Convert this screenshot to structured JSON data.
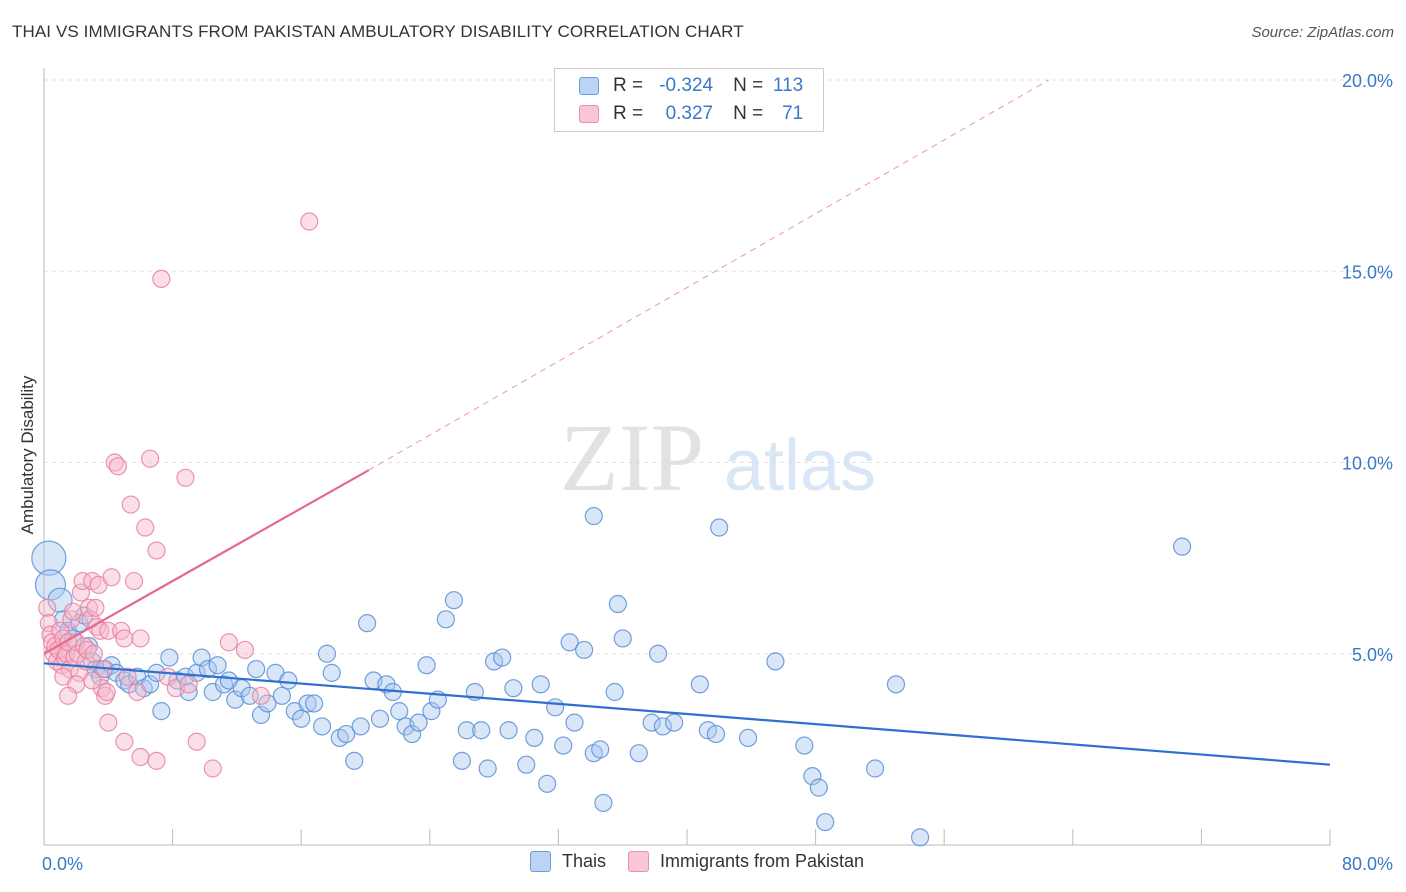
{
  "header": {
    "title": "THAI VS IMMIGRANTS FROM PAKISTAN AMBULATORY DISABILITY CORRELATION CHART",
    "source": "Source: ZipAtlas.com"
  },
  "watermark": {
    "zip": "ZIP",
    "atlas": "atlas"
  },
  "legend_top": {
    "r_label": "R =",
    "n_label": "N =",
    "rows": [
      {
        "r": "-0.324",
        "n": "113"
      },
      {
        "r": "0.327",
        "n": "71"
      }
    ]
  },
  "colors": {
    "thais_fill": "#a8c8f0",
    "thais_stroke": "#5b8fd6",
    "thais_line": "#2f6fcf",
    "pak_fill": "#f7b8cb",
    "pak_stroke": "#e8829f",
    "pak_line": "#e46a90",
    "tick_label": "#3a78c8",
    "grid": "#e2e2e2"
  },
  "chart_data": {
    "type": "scatter",
    "title": "THAI VS IMMIGRANTS FROM PAKISTAN AMBULATORY DISABILITY CORRELATION CHART",
    "xlabel": "",
    "ylabel": "Ambulatory Disability",
    "xlim": [
      0,
      80
    ],
    "ylim": [
      0,
      20
    ],
    "x_tick_labels": [
      "0.0%",
      "80.0%"
    ],
    "y_ticks": [
      5,
      10,
      15,
      20
    ],
    "y_tick_labels": [
      "5.0%",
      "10.0%",
      "15.0%",
      "20.0%"
    ],
    "grid": true,
    "legend": "bottom-center",
    "series": [
      {
        "name": "Thais",
        "r": -0.324,
        "n": 113,
        "trend": {
          "x0": 0,
          "y0": 4.75,
          "x1": 80,
          "y1": 2.1
        },
        "points": [
          [
            0.3,
            7.5
          ],
          [
            0.4,
            6.8
          ],
          [
            1,
            6.4
          ],
          [
            1.2,
            5.9
          ],
          [
            1.5,
            5.6
          ],
          [
            1.8,
            5.4
          ],
          [
            2.2,
            5.8
          ],
          [
            2.5,
            6.0
          ],
          [
            2.8,
            5.2
          ],
          [
            3,
            4.8
          ],
          [
            3.2,
            4.6
          ],
          [
            3.5,
            4.4
          ],
          [
            3.8,
            4.6
          ],
          [
            4.2,
            4.7
          ],
          [
            4.5,
            4.5
          ],
          [
            5,
            4.3
          ],
          [
            5.3,
            4.2
          ],
          [
            5.8,
            4.4
          ],
          [
            6.2,
            4.1
          ],
          [
            6.6,
            4.2
          ],
          [
            7,
            4.5
          ],
          [
            7.3,
            3.5
          ],
          [
            7.8,
            4.9
          ],
          [
            8.3,
            4.3
          ],
          [
            8.8,
            4.4
          ],
          [
            9,
            4.0
          ],
          [
            9.5,
            4.5
          ],
          [
            9.8,
            4.9
          ],
          [
            10.2,
            4.6
          ],
          [
            10.5,
            4.0
          ],
          [
            10.8,
            4.7
          ],
          [
            11.2,
            4.2
          ],
          [
            11.5,
            4.3
          ],
          [
            11.9,
            3.8
          ],
          [
            12.3,
            4.1
          ],
          [
            12.8,
            3.9
          ],
          [
            13.2,
            4.6
          ],
          [
            13.5,
            3.4
          ],
          [
            13.9,
            3.7
          ],
          [
            14.4,
            4.5
          ],
          [
            14.8,
            3.9
          ],
          [
            15.2,
            4.3
          ],
          [
            15.6,
            3.5
          ],
          [
            16,
            3.3
          ],
          [
            16.4,
            3.7
          ],
          [
            16.8,
            3.7
          ],
          [
            17.3,
            3.1
          ],
          [
            17.6,
            5.0
          ],
          [
            17.9,
            4.5
          ],
          [
            18.4,
            2.8
          ],
          [
            18.8,
            2.9
          ],
          [
            19.3,
            2.2
          ],
          [
            19.7,
            3.1
          ],
          [
            20.1,
            5.8
          ],
          [
            20.5,
            4.3
          ],
          [
            20.9,
            3.3
          ],
          [
            21.3,
            4.2
          ],
          [
            21.7,
            4.0
          ],
          [
            22.1,
            3.5
          ],
          [
            22.5,
            3.1
          ],
          [
            22.9,
            2.9
          ],
          [
            23.3,
            3.2
          ],
          [
            23.8,
            4.7
          ],
          [
            24.1,
            3.5
          ],
          [
            24.5,
            3.8
          ],
          [
            25,
            5.9
          ],
          [
            25.5,
            6.4
          ],
          [
            26,
            2.2
          ],
          [
            26.3,
            3.0
          ],
          [
            26.8,
            4.0
          ],
          [
            27.2,
            3.0
          ],
          [
            27.6,
            2.0
          ],
          [
            28,
            4.8
          ],
          [
            28.5,
            4.9
          ],
          [
            28.9,
            3.0
          ],
          [
            29.2,
            4.1
          ],
          [
            30,
            2.1
          ],
          [
            30.5,
            2.8
          ],
          [
            30.9,
            4.2
          ],
          [
            31.3,
            1.6
          ],
          [
            31.8,
            3.6
          ],
          [
            32.3,
            2.6
          ],
          [
            32.7,
            5.3
          ],
          [
            33,
            3.2
          ],
          [
            33.6,
            5.1
          ],
          [
            34.2,
            2.4
          ],
          [
            34.6,
            2.5
          ],
          [
            34.8,
            1.1
          ],
          [
            35.5,
            4.0
          ],
          [
            35.7,
            6.3
          ],
          [
            36,
            5.4
          ],
          [
            37,
            2.4
          ],
          [
            37.8,
            3.2
          ],
          [
            38.2,
            5.0
          ],
          [
            38.5,
            3.1
          ],
          [
            39.2,
            3.2
          ],
          [
            34.2,
            8.6
          ],
          [
            40.8,
            4.2
          ],
          [
            41.3,
            3.0
          ],
          [
            41.8,
            2.9
          ],
          [
            42,
            8.3
          ],
          [
            43.8,
            2.8
          ],
          [
            45.5,
            4.8
          ],
          [
            47.3,
            2.6
          ],
          [
            47.8,
            1.8
          ],
          [
            48.2,
            1.5
          ],
          [
            48.6,
            0.6
          ],
          [
            51.7,
            2.0
          ],
          [
            53,
            4.2
          ],
          [
            54.5,
            0.2
          ],
          [
            70.8,
            7.8
          ]
        ]
      },
      {
        "name": "Immigrants from Pakistan",
        "r": 0.327,
        "n": 71,
        "trend": {
          "x0": 0,
          "y0": 5.0,
          "x1": 20.2,
          "y1": 9.8,
          "x2": 62.5,
          "y2": 20.0
        },
        "points": [
          [
            0.2,
            6.2
          ],
          [
            0.3,
            5.8
          ],
          [
            0.4,
            5.5
          ],
          [
            0.5,
            5.3
          ],
          [
            0.6,
            5.0
          ],
          [
            0.7,
            5.2
          ],
          [
            0.8,
            4.8
          ],
          [
            0.9,
            5.1
          ],
          [
            1,
            5.6
          ],
          [
            1.1,
            4.7
          ],
          [
            1.2,
            5.4
          ],
          [
            1.3,
            4.9
          ],
          [
            1.4,
            5.0
          ],
          [
            1.5,
            5.3
          ],
          [
            1.6,
            4.6
          ],
          [
            1.7,
            5.9
          ],
          [
            1.8,
            6.1
          ],
          [
            1.9,
            4.9
          ],
          [
            2,
            5.3
          ],
          [
            2.1,
            5.0
          ],
          [
            2.2,
            4.5
          ],
          [
            2.3,
            6.6
          ],
          [
            2.4,
            6.9
          ],
          [
            2.5,
            5.2
          ],
          [
            2.6,
            4.8
          ],
          [
            2.7,
            5.1
          ],
          [
            2.8,
            6.2
          ],
          [
            2.9,
            5.9
          ],
          [
            3,
            6.9
          ],
          [
            3.1,
            5.0
          ],
          [
            3.2,
            6.2
          ],
          [
            3.3,
            5.7
          ],
          [
            3.4,
            6.8
          ],
          [
            3.5,
            5.6
          ],
          [
            3.6,
            4.1
          ],
          [
            3.7,
            4.6
          ],
          [
            3.8,
            3.9
          ],
          [
            3.9,
            4.0
          ],
          [
            4.0,
            5.6
          ],
          [
            4.2,
            7.0
          ],
          [
            4.4,
            10.0
          ],
          [
            4.6,
            9.9
          ],
          [
            4.8,
            5.6
          ],
          [
            5.0,
            5.4
          ],
          [
            5.2,
            4.4
          ],
          [
            5.4,
            8.9
          ],
          [
            5.6,
            6.9
          ],
          [
            5.8,
            4.0
          ],
          [
            6.0,
            5.4
          ],
          [
            6.3,
            8.3
          ],
          [
            6.6,
            10.1
          ],
          [
            7,
            7.7
          ],
          [
            7.3,
            14.8
          ],
          [
            7.7,
            4.4
          ],
          [
            8.2,
            4.1
          ],
          [
            8.8,
            9.6
          ],
          [
            9,
            4.2
          ],
          [
            9.5,
            2.7
          ],
          [
            10.5,
            2.0
          ],
          [
            11.5,
            5.3
          ],
          [
            12.5,
            5.1
          ],
          [
            13.5,
            3.9
          ],
          [
            16.5,
            16.3
          ],
          [
            1.2,
            4.4
          ],
          [
            2.0,
            4.2
          ],
          [
            3.0,
            4.3
          ],
          [
            4.0,
            3.2
          ],
          [
            5.0,
            2.7
          ],
          [
            6.0,
            2.3
          ],
          [
            7.0,
            2.2
          ],
          [
            1.5,
            3.9
          ]
        ]
      }
    ]
  },
  "legend_bottom": {
    "items": [
      {
        "label": "Thais"
      },
      {
        "label": "Immigrants from Pakistan"
      }
    ]
  }
}
